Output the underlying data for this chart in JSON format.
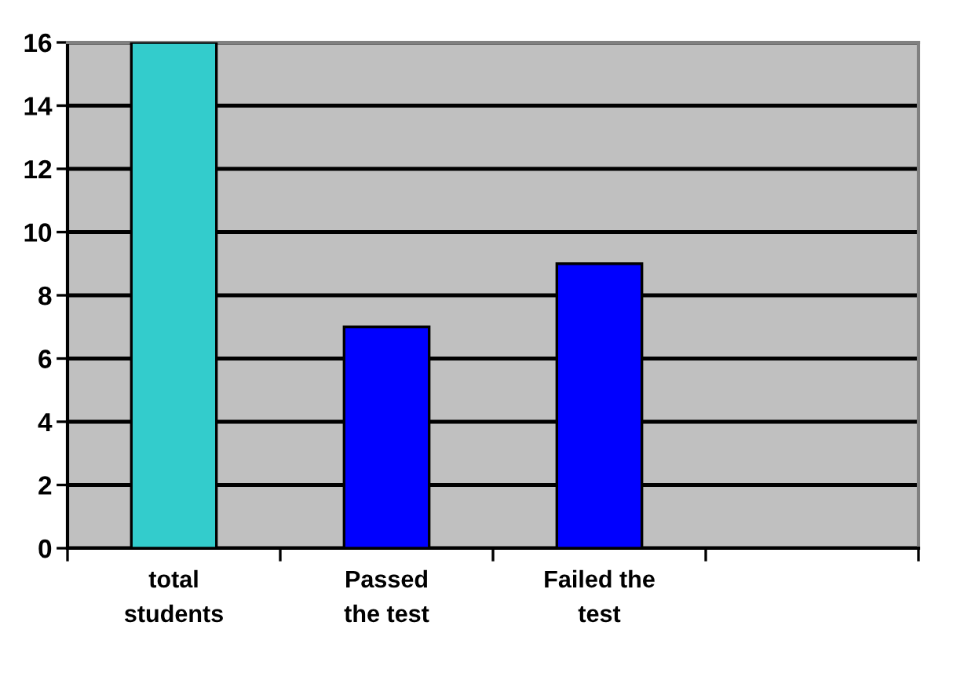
{
  "chart_data": {
    "type": "bar",
    "categories": [
      "total\nstudents",
      "Passed\nthe test",
      "Failed the\ntest",
      null
    ],
    "values": [
      16,
      7,
      9,
      null
    ],
    "colors": [
      "#33cccc",
      "#0000ff",
      "#0000ff",
      null
    ],
    "ylim": [
      0,
      16
    ],
    "yticks": [
      0,
      2,
      4,
      6,
      8,
      10,
      12,
      14,
      16
    ],
    "grid": "y",
    "legend": false
  }
}
